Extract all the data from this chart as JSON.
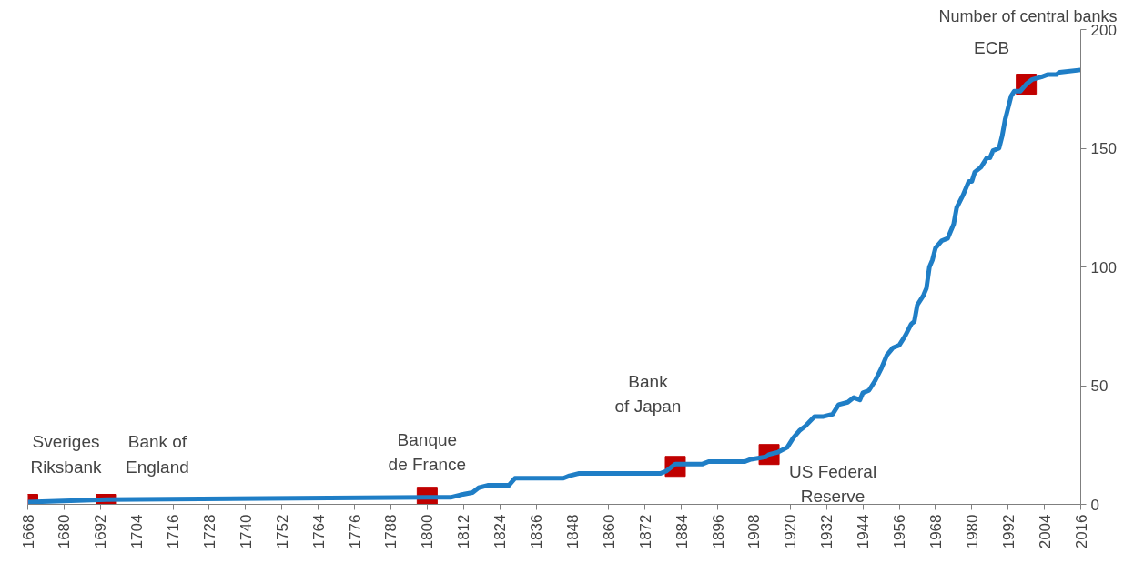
{
  "chart_data": {
    "type": "line",
    "ylabel": "Number of central banks",
    "xlim": [
      1668,
      2016
    ],
    "xticks": [
      1668,
      1680,
      1692,
      1704,
      1716,
      1728,
      1740,
      1752,
      1764,
      1776,
      1788,
      1800,
      1812,
      1824,
      1836,
      1848,
      1860,
      1872,
      1884,
      1896,
      1908,
      1920,
      1932,
      1944,
      1956,
      1968,
      1980,
      1992,
      2004,
      2016
    ],
    "ylim": [
      0,
      200
    ],
    "yticks": [
      0,
      50,
      100,
      150,
      200
    ],
    "grid": false,
    "series": [
      {
        "color": "#1f7ec6",
        "line_style": "solid",
        "x": [
          1668,
          1694,
          1800,
          1808,
          1811,
          1815,
          1817,
          1820,
          1827,
          1829,
          1845,
          1847,
          1850,
          1877,
          1879,
          1882,
          1891,
          1893,
          1905,
          1907,
          1912,
          1913,
          1916,
          1919,
          1921,
          1923,
          1925,
          1928,
          1931,
          1934,
          1936,
          1939,
          1941,
          1943,
          1944,
          1946,
          1948,
          1950,
          1952,
          1954,
          1956,
          1958,
          1960,
          1961,
          1962,
          1964,
          1965,
          1966,
          1967,
          1968,
          1970,
          1972,
          1974,
          1975,
          1977,
          1979,
          1980,
          1981,
          1983,
          1985,
          1986,
          1987,
          1989,
          1990,
          1991,
          1993,
          1994,
          1996,
          1998,
          2000,
          2003,
          2005,
          2008,
          2009,
          2016
        ],
        "values": [
          1,
          2,
          3,
          3,
          4,
          5,
          7,
          8,
          8,
          11,
          11,
          12,
          13,
          13,
          14,
          17,
          17,
          18,
          18,
          19,
          20,
          21,
          22,
          24,
          28,
          31,
          33,
          37,
          37,
          38,
          42,
          43,
          45,
          44,
          47,
          48,
          52,
          57,
          63,
          66,
          67,
          71,
          76,
          77,
          84,
          88,
          91,
          100,
          103,
          108,
          111,
          112,
          118,
          125,
          130,
          136,
          136,
          140,
          142,
          146,
          146,
          149,
          150,
          155,
          162,
          172,
          174,
          174,
          177,
          179,
          180,
          181,
          181,
          182,
          183
        ]
      },
      {
        "type": "scatter",
        "color": "#c00000",
        "marker": "square",
        "x": [
          1668,
          1694,
          1800,
          1882,
          1913,
          1998
        ],
        "values": [
          0,
          0,
          3,
          16,
          21,
          177
        ]
      }
    ],
    "annotations": [
      {
        "text": "Sveriges\nRiksbank",
        "x": 1668,
        "y": 0
      },
      {
        "text": "Bank of\nEngland",
        "x": 1694,
        "y": 0
      },
      {
        "text": "Banque\nde France",
        "x": 1800,
        "y": 3
      },
      {
        "text": "Bank\nof Japan",
        "x": 1882,
        "y": 16
      },
      {
        "text": "US Federal\nReserve",
        "x": 1913,
        "y": 21
      },
      {
        "text": "ECB",
        "x": 1998,
        "y": 177
      }
    ]
  }
}
